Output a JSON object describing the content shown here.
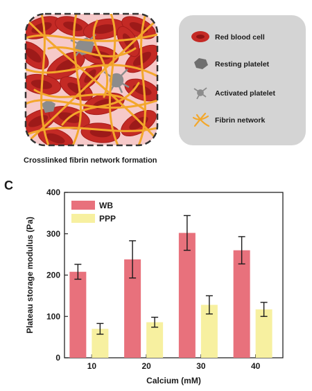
{
  "illustration": {
    "caption": "Crosslinked fibrin network formation"
  },
  "legend_box": {
    "items": [
      {
        "label": "Red blood cell",
        "icon": "red-blood-cell-icon"
      },
      {
        "label": "Resting platelet",
        "icon": "resting-platelet-icon"
      },
      {
        "label": "Activated platelet",
        "icon": "activated-platelet-icon"
      },
      {
        "label": "Fibrin network",
        "icon": "fibrin-network-icon"
      }
    ]
  },
  "panel_letter": "C",
  "chart_data": {
    "type": "bar",
    "xlabel": "Calcium (mM)",
    "ylabel": "Plateau storage modulus (Pa)",
    "categories": [
      "10",
      "20",
      "30",
      "40"
    ],
    "ylim": [
      0,
      400
    ],
    "yticks": [
      "0",
      "100",
      "200",
      "300",
      "400"
    ],
    "legend_position": "top-left",
    "grid": false,
    "series": [
      {
        "name": "WB",
        "color": "#e8717c",
        "values": [
          208,
          238,
          302,
          260
        ],
        "errors": [
          18,
          45,
          42,
          33
        ]
      },
      {
        "name": "PPP",
        "color": "#f7f0a0",
        "values": [
          70,
          86,
          128,
          117
        ],
        "errors": [
          13,
          12,
          22,
          17
        ]
      }
    ]
  }
}
